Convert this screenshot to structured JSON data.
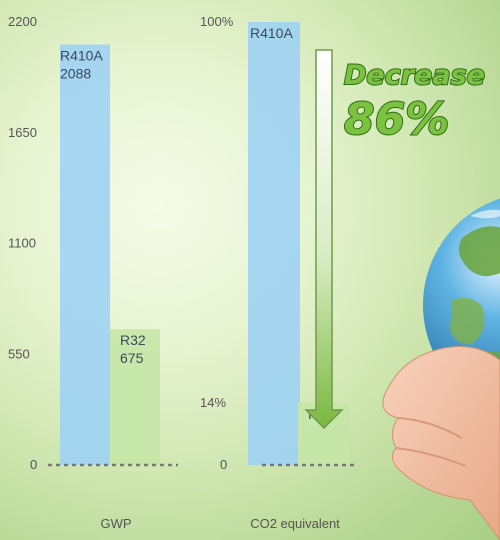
{
  "chart_data": [
    {
      "type": "bar",
      "categories": [
        "R410A",
        "R32"
      ],
      "values": [
        2088,
        675
      ],
      "bar_labels": [
        [
          "R410A",
          "2088"
        ],
        [
          "R32",
          "675"
        ]
      ],
      "colors": [
        "#9fd2f3",
        "#c5e6a8"
      ],
      "xlabel": "GWP",
      "ylim": [
        0,
        2200
      ],
      "yticks": [
        "0",
        "550",
        "1100",
        "1650",
        "2200"
      ],
      "ytick_values": [
        0,
        550,
        1100,
        1650,
        2200
      ]
    },
    {
      "type": "bar",
      "categories": [
        "R410A",
        "R32"
      ],
      "values": [
        100,
        14
      ],
      "bar_labels": [
        [
          "R410A"
        ],
        [
          "R32"
        ]
      ],
      "colors": [
        "#9fd2f3",
        "#c5e6a8"
      ],
      "xlabel": "CO2 equivalent",
      "ylim": [
        0,
        100
      ],
      "yticks": [
        "0",
        "14%",
        "100%"
      ],
      "ytick_values": [
        0,
        14,
        100
      ]
    }
  ],
  "callout": {
    "word": "Decrease",
    "percent": "86%"
  },
  "colors": {
    "arrow_top": "#ffffff",
    "arrow_bottom": "#7ab83e",
    "callout_fill": "#7cc241"
  },
  "icons": {
    "earth": "earth-globe-in-hands"
  }
}
